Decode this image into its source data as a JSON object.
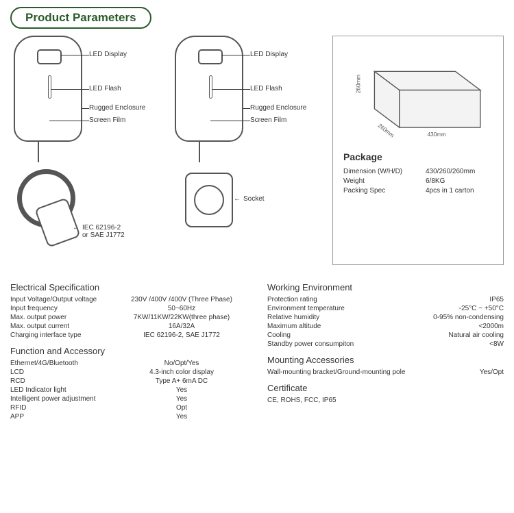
{
  "title": "Product Parameters",
  "diagram_labels": {
    "led_display": "LED Display",
    "led_flash": "LED Flash",
    "rugged_enclosure": "Rugged Enclosure",
    "screen_film": "Screen Film",
    "plug_standard": "IEC 62196-2\nor SAE J1772",
    "socket": "Socket"
  },
  "package": {
    "title": "Package",
    "box_dims": {
      "w": "430mm",
      "h": "260mm",
      "d": "260mm"
    },
    "rows": [
      {
        "k": "Dimension (W/H/D)",
        "v": "430/260/260mm"
      },
      {
        "k": "Weight",
        "v": "6/8KG"
      },
      {
        "k": "Packing Spec",
        "v": "4pcs in 1 carton"
      }
    ]
  },
  "specs_left": [
    {
      "title": "Electrical Specification",
      "rows": [
        {
          "k": "Input Voltage/Output voltage",
          "v": "230V /400V /400V (Three Phase)"
        },
        {
          "k": "Input frequency",
          "v": "50~60Hz"
        },
        {
          "k": "Max. output power",
          "v": "7KW/11KW/22KW(three phase)"
        },
        {
          "k": "Max. output current",
          "v": "16A/32A"
        },
        {
          "k": "Charging interface type",
          "v": "IEC 62196-2, SAE J1772"
        }
      ]
    },
    {
      "title": "Function and Accessory",
      "rows": [
        {
          "k": "Ethernet/4G/Bluetooth",
          "v": "No/Opt/Yes"
        },
        {
          "k": "LCD",
          "v": "4.3-inch color display"
        },
        {
          "k": "RCD",
          "v": "Type A+ 6mA DC"
        },
        {
          "k": "LED Indicator light",
          "v": "Yes"
        },
        {
          "k": "Intelligent power adjustment",
          "v": "Yes"
        },
        {
          "k": "RFID",
          "v": "Opt"
        },
        {
          "k": "APP",
          "v": "Yes"
        }
      ]
    }
  ],
  "specs_right": [
    {
      "title": "Working Environment",
      "rows": [
        {
          "k": "Protection rating",
          "v": "IP65"
        },
        {
          "k": "Environment temperature",
          "v": "-25°C ~ +50°C"
        },
        {
          "k": "Relative humidity",
          "v": "0-95% non-condensing"
        },
        {
          "k": "Maximum altitude",
          "v": "<2000m"
        },
        {
          "k": "Cooling",
          "v": "Natural air cooling"
        },
        {
          "k": "Standby power consumpiton",
          "v": "<8W"
        }
      ]
    },
    {
      "title": "Mounting Accessories",
      "rows": [
        {
          "k": "Wall-mounting bracket/Ground-mounting pole",
          "v": "Yes/Opt"
        }
      ]
    },
    {
      "title": "Certificate",
      "rows": [
        {
          "k": "CE, ROHS, FCC, IP65",
          "v": ""
        }
      ]
    }
  ]
}
